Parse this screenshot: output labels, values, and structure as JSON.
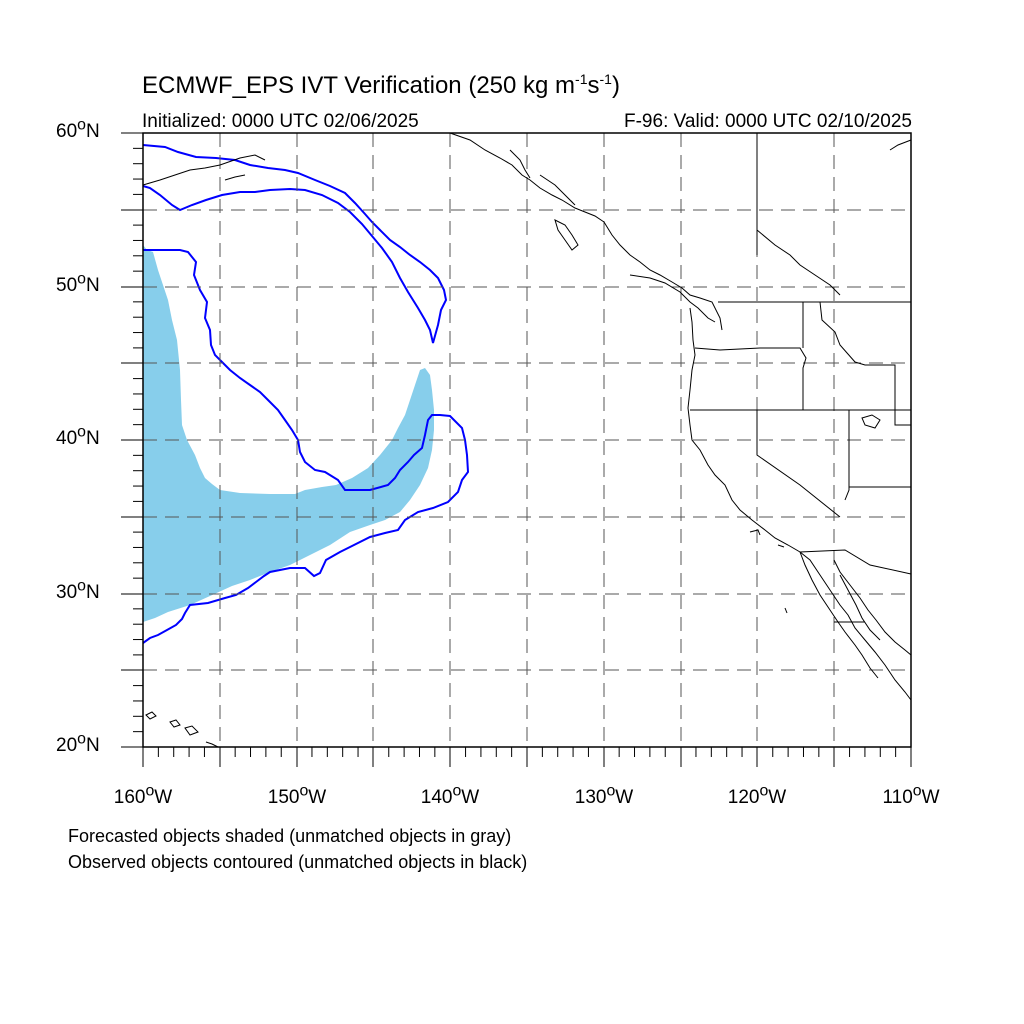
{
  "title": {
    "prefix": "ECMWF_EPS IVT Verification (250 kg m",
    "exp1": "-1",
    "mid": "s",
    "exp2": "-1",
    "suffix": ")"
  },
  "initialized": "Initialized: 0000 UTC 02/06/2025",
  "valid": "F-96: Valid: 0000 UTC 02/10/2025",
  "lat_labels": [
    {
      "value": "60",
      "unit": "o",
      "hem": "N"
    },
    {
      "value": "50",
      "unit": "o",
      "hem": "N"
    },
    {
      "value": "40",
      "unit": "o",
      "hem": "N"
    },
    {
      "value": "30",
      "unit": "o",
      "hem": "N"
    },
    {
      "value": "20",
      "unit": "o",
      "hem": "N"
    }
  ],
  "lon_labels": [
    {
      "value": "160",
      "unit": "o",
      "hem": "W"
    },
    {
      "value": "150",
      "unit": "o",
      "hem": "W"
    },
    {
      "value": "140",
      "unit": "o",
      "hem": "W"
    },
    {
      "value": "130",
      "unit": "o",
      "hem": "W"
    },
    {
      "value": "120",
      "unit": "o",
      "hem": "W"
    },
    {
      "value": "110",
      "unit": "o",
      "hem": "W"
    }
  ],
  "notes": [
    "Forecasted objects shaded (unmatched objects in gray)",
    "Observed objects contoured (unmatched objects in black)"
  ],
  "colors": {
    "forecast_fill": "#87CEEB",
    "observed_contour": "#0000FF",
    "coastline": "#000000",
    "grid": "#555555"
  },
  "extent": {
    "lon_min": -160,
    "lon_max": -110,
    "lat_min": 20,
    "lat_max": 60
  }
}
